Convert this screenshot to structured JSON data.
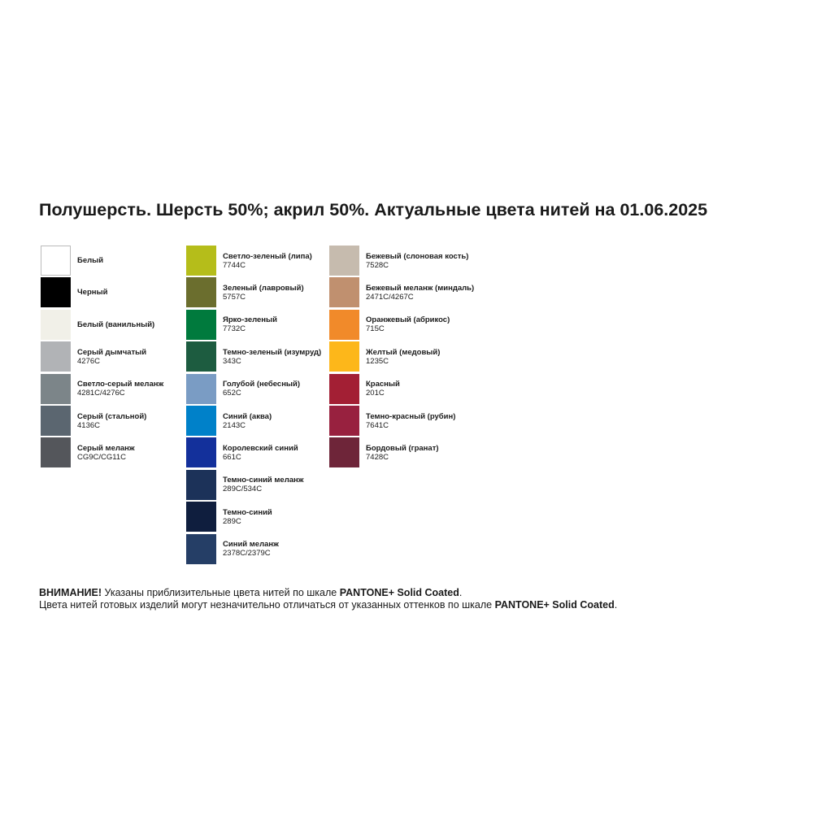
{
  "title": "Полушерсть. Шерсть 50%; акрил 50%. Актуальные цвета нитей на 01.06.2025",
  "columns": [
    [
      {
        "name": "Белый",
        "code": null,
        "color": "#ffffff"
      },
      {
        "name": "Черный",
        "code": null,
        "color": "#000000"
      },
      {
        "name": "Белый (ванильный)",
        "code": null,
        "color": "#f1f0e8"
      },
      {
        "name": "Серый дымчатый",
        "code": "4276C",
        "color": "#b1b3b6"
      },
      {
        "name": "Светло-серый меланж",
        "code": "4281C/4276C",
        "color": "#7c8589"
      },
      {
        "name": "Серый (стальной)",
        "code": "4136C",
        "color": "#5b6670"
      },
      {
        "name": "Серый меланж",
        "code": "CG9C/CG11C",
        "color": "#54565b"
      }
    ],
    [
      {
        "name": "Светло-зеленый (липа)",
        "code": "7744C",
        "color": "#b5bd1a"
      },
      {
        "name": "Зеленый (лавровый)",
        "code": "5757C",
        "color": "#6b6e2e"
      },
      {
        "name": "Ярко-зеленый",
        "code": "7732C",
        "color": "#007a3d"
      },
      {
        "name": "Темно-зеленый (изумруд)",
        "code": "343C",
        "color": "#1d5c40"
      },
      {
        "name": "Голубой (небесный)",
        "code": "652C",
        "color": "#7a9cc4"
      },
      {
        "name": "Синий (аква)",
        "code": "2143C",
        "color": "#0081c9"
      },
      {
        "name": "Королевский синий",
        "code": "661C",
        "color": "#13309b"
      },
      {
        "name": "Темно-синий меланж",
        "code": "289C/534C",
        "color": "#1c3259"
      },
      {
        "name": "Темно-синий",
        "code": "289C",
        "color": "#0f1e3e"
      },
      {
        "name": "Синий меланж",
        "code": "2378C/2379C",
        "color": "#253e66"
      }
    ],
    [
      {
        "name": "Бежевый (слоновая кость)",
        "code": "7528C",
        "color": "#c6bbae"
      },
      {
        "name": "Бежевый меланж (миндаль)",
        "code": "2471C/4267C",
        "color": "#c0906f"
      },
      {
        "name": "Оранжевый (абрикос)",
        "code": "715C",
        "color": "#f18a2a"
      },
      {
        "name": "Желтый (медовый)",
        "code": "1235C",
        "color": "#fdb71a"
      },
      {
        "name": "Красный",
        "code": "201C",
        "color": "#a31f34"
      },
      {
        "name": "Темно-красный (рубин)",
        "code": "7641C",
        "color": "#98213f"
      },
      {
        "name": "Бордовый (гранат)",
        "code": "7428C",
        "color": "#6e2539"
      }
    ]
  ],
  "notice": {
    "lead": "ВНИМАНИЕ!",
    "line1": "Указаны приблизительные цвета нитей по шкале",
    "brand1": "PANTONE+ Solid Coated",
    "end1": ".",
    "line2": "Цвета нитей готовых изделий могут незначительно отличаться от указанных оттенков по шкале",
    "brand2": "PANTONE+ Solid Coated",
    "end2": "."
  }
}
